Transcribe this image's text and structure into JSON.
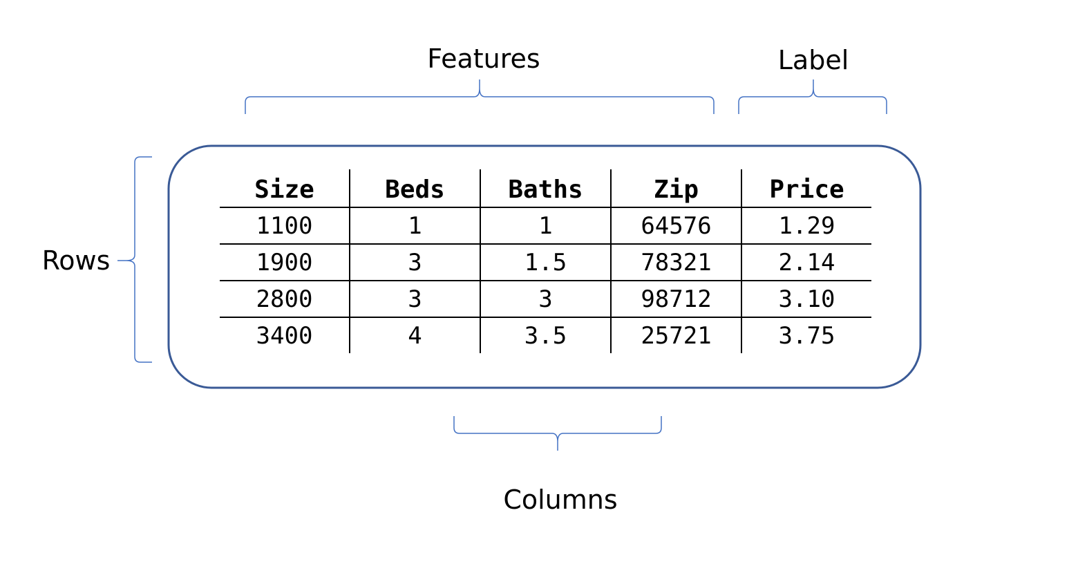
{
  "annotations": {
    "features": "Features",
    "label": "Label",
    "rows": "Rows",
    "columns": "Columns"
  },
  "colors": {
    "box_border": "#3a5a96",
    "brace": "#4472c4"
  },
  "table": {
    "headers": [
      "Size",
      "Beds",
      "Baths",
      "Zip",
      "Price"
    ],
    "rows": [
      [
        "1100",
        "1",
        "1",
        "64576",
        "1.29"
      ],
      [
        "1900",
        "3",
        "1.5",
        "78321",
        "2.14"
      ],
      [
        "2800",
        "3",
        "3",
        "98712",
        "3.10"
      ],
      [
        "3400",
        "4",
        "3.5",
        "25721",
        "3.75"
      ]
    ]
  }
}
